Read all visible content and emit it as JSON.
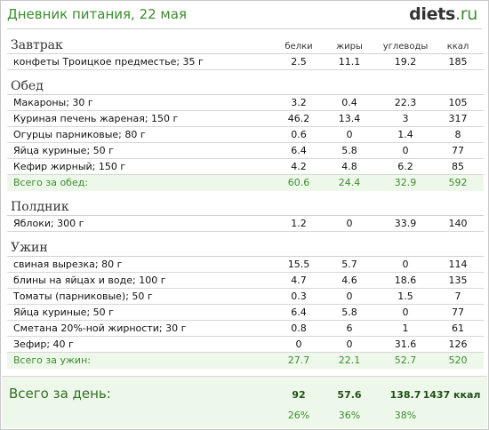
{
  "header": {
    "title": "Дневник питания, 22 мая",
    "logo_main": "diets",
    "logo_tld": ".ru"
  },
  "columns": [
    "белки",
    "жиры",
    "углеводы",
    "ккал"
  ],
  "meals": [
    {
      "name": "Завтрак",
      "items": [
        {
          "name": "конфеты Троицкое предместье; 35 г",
          "protein": "2.5",
          "fat": "11.1",
          "carbs": "19.2",
          "kcal": "185"
        }
      ]
    },
    {
      "name": "Обед",
      "items": [
        {
          "name": "Макароны; 30 г",
          "protein": "3.2",
          "fat": "0.4",
          "carbs": "22.3",
          "kcal": "105"
        },
        {
          "name": "Куриная печень жареная; 150 г",
          "protein": "46.2",
          "fat": "13.4",
          "carbs": "3",
          "kcal": "317"
        },
        {
          "name": "Огурцы парниковые; 80 г",
          "protein": "0.6",
          "fat": "0",
          "carbs": "1.4",
          "kcal": "8"
        },
        {
          "name": "Яйца куриные; 50 г",
          "protein": "6.4",
          "fat": "5.8",
          "carbs": "0",
          "kcal": "77"
        },
        {
          "name": "Кефир жирный; 150 г",
          "protein": "4.2",
          "fat": "4.8",
          "carbs": "6.2",
          "kcal": "85"
        }
      ],
      "total": {
        "label": "Всего за обед:",
        "protein": "60.6",
        "fat": "24.4",
        "carbs": "32.9",
        "kcal": "592"
      }
    },
    {
      "name": "Полдник",
      "items": [
        {
          "name": "Яблоки; 300 г",
          "protein": "1.2",
          "fat": "0",
          "carbs": "33.9",
          "kcal": "140"
        }
      ]
    },
    {
      "name": "Ужин",
      "items": [
        {
          "name": "свиная вырезка; 80 г",
          "protein": "15.5",
          "fat": "5.7",
          "carbs": "0",
          "kcal": "114"
        },
        {
          "name": "блины на яйцах и воде; 100 г",
          "protein": "4.7",
          "fat": "4.6",
          "carbs": "18.6",
          "kcal": "135"
        },
        {
          "name": "Томаты (парниковые); 50 г",
          "protein": "0.3",
          "fat": "0",
          "carbs": "1.5",
          "kcal": "7"
        },
        {
          "name": "Яйца куриные; 50 г",
          "protein": "6.4",
          "fat": "5.8",
          "carbs": "0",
          "kcal": "77"
        },
        {
          "name": "Сметана 20%-ной жирности; 30 г",
          "protein": "0.8",
          "fat": "6",
          "carbs": "1",
          "kcal": "61"
        },
        {
          "name": "Зефир; 40 г",
          "protein": "0",
          "fat": "0",
          "carbs": "31.6",
          "kcal": "126"
        }
      ],
      "total": {
        "label": "Всего за ужин:",
        "protein": "27.7",
        "fat": "22.1",
        "carbs": "52.7",
        "kcal": "520"
      }
    }
  ],
  "day_total": {
    "label": "Всего за день:",
    "protein": "92",
    "fat": "57.6",
    "carbs": "138.7",
    "kcal": "1437 ккал",
    "protein_pct": "26%",
    "fat_pct": "36%",
    "carbs_pct": "38%"
  },
  "colors": {
    "accent": "#3d8c2e",
    "total_bg": "#eef8ea"
  }
}
